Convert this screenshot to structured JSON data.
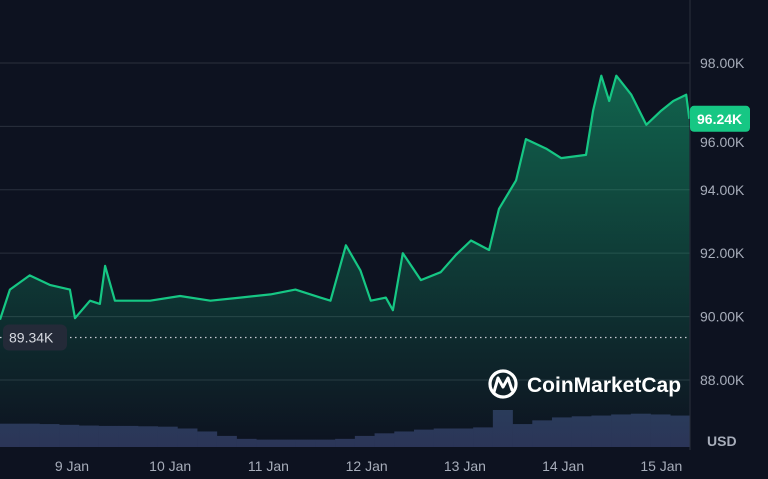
{
  "chart_data": {
    "type": "area",
    "currency_label": "USD",
    "y_ticks": [
      "88.00K",
      "90.00K",
      "92.00K",
      "94.00K",
      "96.00K",
      "98.00K"
    ],
    "y_tick_values": [
      88000,
      90000,
      92000,
      94000,
      96000,
      98000
    ],
    "ylim": [
      87450,
      99600
    ],
    "x_ticks": [
      "9 Jan",
      "10 Jan",
      "11 Jan",
      "12 Jan",
      "13 Jan",
      "14 Jan",
      "15 Jan"
    ],
    "xlim": [
      "8 Jan 06:25",
      "15 Jan 07:00"
    ],
    "grid": "horizontal",
    "current_price_label": "96.24K",
    "current_price": 96240,
    "reference_label": "89.34K",
    "reference_value": 89340,
    "line_color": "#16c784",
    "badge_color": "#16c784",
    "volume_color": "#2b3558",
    "watermark": "CoinMarketCap",
    "price": [
      [
        "8 Jan 06:25",
        89900
      ],
      [
        "8 Jan 08:50",
        90850
      ],
      [
        "8 Jan 13:40",
        91300
      ],
      [
        "8 Jan 18:35",
        91000
      ],
      [
        "8 Jan 23:30",
        90850
      ],
      [
        "9 Jan 00:45",
        89950
      ],
      [
        "9 Jan 04:25",
        90500
      ],
      [
        "9 Jan 06:50",
        90400
      ],
      [
        "9 Jan 08:05",
        91600
      ],
      [
        "9 Jan 10:30",
        90500
      ],
      [
        "9 Jan 14:10",
        90500
      ],
      [
        "9 Jan 19:05",
        90500
      ],
      [
        "10 Jan 02:25",
        90650
      ],
      [
        "10 Jan 09:50",
        90500
      ],
      [
        "10 Jan 17:05",
        90600
      ],
      [
        "11 Jan 00:30",
        90700
      ],
      [
        "11 Jan 06:35",
        90850
      ],
      [
        "11 Jan 12:40",
        90600
      ],
      [
        "11 Jan 15:10",
        90500
      ],
      [
        "11 Jan 18:55",
        92250
      ],
      [
        "11 Jan 22:30",
        91450
      ],
      [
        "12 Jan 01:00",
        90500
      ],
      [
        "12 Jan 04:40",
        90600
      ],
      [
        "12 Jan 06:25",
        90200
      ],
      [
        "12 Jan 08:50",
        92000
      ],
      [
        "12 Jan 13:15",
        91150
      ],
      [
        "12 Jan 18:05",
        91400
      ],
      [
        "12 Jan 21:50",
        91950
      ],
      [
        "13 Jan 01:30",
        92400
      ],
      [
        "13 Jan 05:55",
        92100
      ],
      [
        "13 Jan 08:20",
        93400
      ],
      [
        "13 Jan 12:30",
        94300
      ],
      [
        "13 Jan 14:55",
        95600
      ],
      [
        "13 Jan 19:50",
        95300
      ],
      [
        "13 Jan 23:30",
        95000
      ],
      [
        "14 Jan 05:35",
        95100
      ],
      [
        "14 Jan 07:20",
        96500
      ],
      [
        "14 Jan 09:20",
        97600
      ],
      [
        "14 Jan 11:15",
        96800
      ],
      [
        "14 Jan 13:00",
        97600
      ],
      [
        "14 Jan 16:40",
        97000
      ],
      [
        "14 Jan 20:20",
        96050
      ],
      [
        "15 Jan 00:00",
        96500
      ],
      [
        "15 Jan 02:55",
        96800
      ],
      [
        "15 Jan 06:05",
        97000
      ],
      [
        "15 Jan 06:50",
        96240
      ]
    ],
    "volume_relative": [
      0.63,
      0.63,
      0.62,
      0.6,
      0.58,
      0.57,
      0.57,
      0.56,
      0.55,
      0.5,
      0.42,
      0.3,
      0.22,
      0.2,
      0.2,
      0.2,
      0.2,
      0.22,
      0.3,
      0.37,
      0.42,
      0.47,
      0.5,
      0.5,
      0.53,
      1.0,
      0.62,
      0.72,
      0.8,
      0.83,
      0.85,
      0.88,
      0.9,
      0.88,
      0.85
    ]
  }
}
